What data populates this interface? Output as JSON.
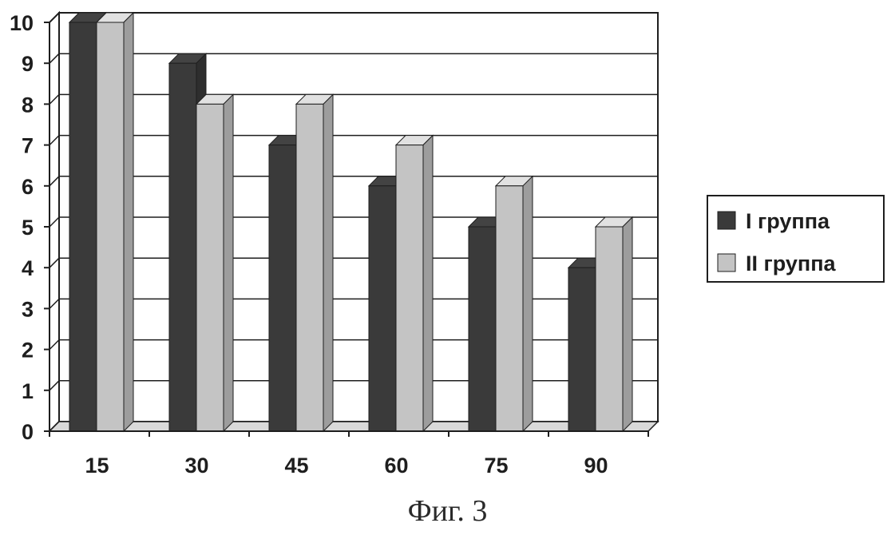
{
  "caption": "Фиг. 3",
  "chart_data": {
    "type": "bar",
    "categories": [
      "15",
      "30",
      "45",
      "60",
      "75",
      "90"
    ],
    "series": [
      {
        "name": "I группа",
        "values": [
          10,
          9,
          7,
          6,
          5,
          4
        ]
      },
      {
        "name": "II группа",
        "values": [
          10,
          8,
          8,
          7,
          6,
          5
        ]
      }
    ],
    "yticks": [
      "0",
      "1",
      "2",
      "3",
      "4",
      "5",
      "6",
      "7",
      "8",
      "9",
      "10"
    ],
    "ylim": [
      0,
      10
    ],
    "grid": true,
    "legend_position": "right",
    "style": "3d",
    "colors": {
      "I группа": "#3a3a3a",
      "II группа": "#c4c4c4",
      "grid": "#1e1e1e"
    }
  }
}
